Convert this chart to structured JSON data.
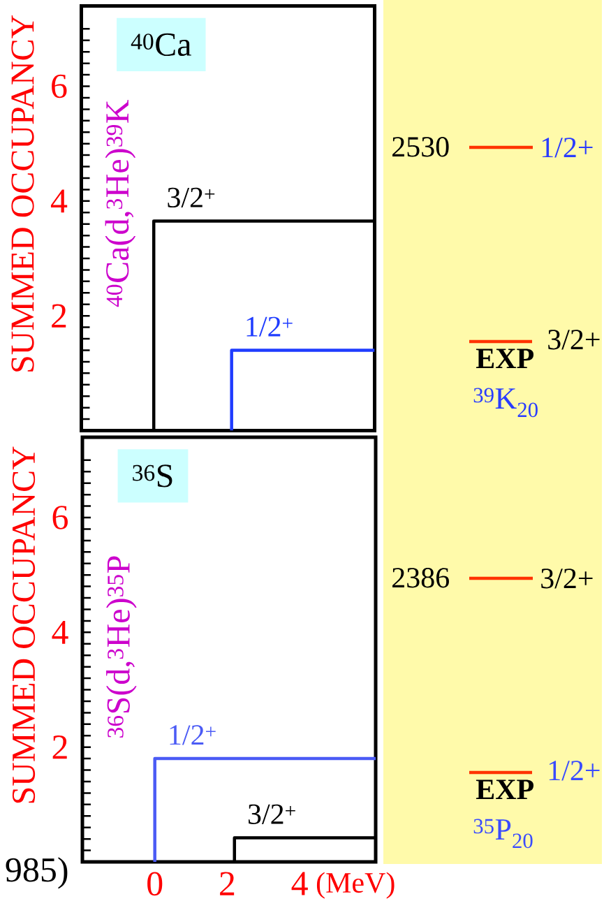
{
  "chart_data": [
    {
      "type": "step",
      "title": "$^{40}$Ca",
      "subtitle": "$^{40}$Ca(d,$^{3}$He)$^{39}$K",
      "ylabel": "SUMMED OCCUPANCY",
      "xlim": [
        -2,
        6.1
      ],
      "ylim": [
        0,
        7.4
      ],
      "xticks": [
        0,
        2,
        4
      ],
      "tick_labels": "y",
      "yticks": [
        {
          "value": 0.2,
          "label": null
        },
        {
          "value": 0.4,
          "label": null
        },
        {
          "value": 0.6,
          "label": null
        },
        {
          "value": 0.8,
          "label": null
        },
        {
          "value": 1,
          "label": null
        },
        {
          "value": 1.2,
          "label": null
        },
        {
          "value": 1.4,
          "label": null
        },
        {
          "value": 1.6,
          "label": null
        },
        {
          "value": 1.8,
          "label": null
        },
        2,
        {
          "value": 2.2,
          "label": null
        },
        {
          "value": 2.4,
          "label": null
        },
        {
          "value": 2.6,
          "label": null
        },
        {
          "value": 2.8,
          "label": null
        },
        {
          "value": 3,
          "label": null
        },
        {
          "value": 3.2,
          "label": null
        },
        {
          "value": 3.4,
          "label": null
        },
        {
          "value": 3.6,
          "label": null
        },
        {
          "value": 3.8,
          "label": null
        },
        4,
        {
          "value": 4.2,
          "label": null
        },
        {
          "value": 4.4,
          "label": null
        },
        {
          "value": 4.6,
          "label": null
        },
        {
          "value": 4.8,
          "label": null
        },
        {
          "value": 5,
          "label": null
        },
        {
          "value": 5.2,
          "label": null
        },
        {
          "value": 5.4,
          "label": null
        },
        {
          "value": 5.6,
          "label": null
        },
        {
          "value": 5.8,
          "label": null
        },
        6,
        {
          "value": 6.2,
          "label": null
        },
        {
          "value": 6.4,
          "label": null
        },
        {
          "value": 6.6,
          "label": null
        },
        {
          "value": 6.8,
          "label": null
        },
        {
          "value": 7,
          "label": null
        }
      ],
      "series": [
        {
          "name": "3/2$^{+}$",
          "color": "#000000",
          "x": [
            0,
            0,
            6.1
          ],
          "values": [
            0,
            3.65,
            3.65
          ]
        },
        {
          "name": "1/2$^{+}$",
          "color": "#1f3cff",
          "x": [
            2.15,
            2.15,
            6.1
          ],
          "values": [
            0,
            1.4,
            1.4
          ]
        }
      ]
    },
    {
      "type": "other",
      "annotations": [
        "2530",
        "1/2+",
        "3/2+",
        "EXP",
        "$^{39}$K$_{20}$"
      ]
    },
    {
      "type": "step",
      "title": "$^{36}$S",
      "subtitle": "$^{36}$S(d,$^{3}$He)$^{35}$P",
      "xlabel": "(MeV)",
      "ylabel": "SUMMED OCCUPANCY",
      "xlim": [
        -2,
        6.1
      ],
      "ylim": [
        0,
        7.4
      ],
      "xticks": [
        0,
        2,
        4
      ],
      "yticks": [
        {
          "value": 0.2,
          "label": null
        },
        {
          "value": 0.4,
          "label": null
        },
        {
          "value": 0.6,
          "label": null
        },
        {
          "value": 0.8,
          "label": null
        },
        {
          "value": 1,
          "label": null
        },
        {
          "value": 1.2,
          "label": null
        },
        {
          "value": 1.4,
          "label": null
        },
        {
          "value": 1.6,
          "label": null
        },
        {
          "value": 1.8,
          "label": null
        },
        2,
        {
          "value": 2.2,
          "label": null
        },
        {
          "value": 2.4,
          "label": null
        },
        {
          "value": 2.6,
          "label": null
        },
        {
          "value": 2.8,
          "label": null
        },
        {
          "value": 3,
          "label": null
        },
        {
          "value": 3.2,
          "label": null
        },
        {
          "value": 3.4,
          "label": null
        },
        {
          "value": 3.6,
          "label": null
        },
        {
          "value": 3.8,
          "label": null
        },
        4,
        {
          "value": 4.2,
          "label": null
        },
        {
          "value": 4.4,
          "label": null
        },
        {
          "value": 4.6,
          "label": null
        },
        {
          "value": 4.8,
          "label": null
        },
        {
          "value": 5,
          "label": null
        },
        {
          "value": 5.2,
          "label": null
        },
        {
          "value": 5.4,
          "label": null
        },
        {
          "value": 5.6,
          "label": null
        },
        {
          "value": 5.8,
          "label": null
        },
        6,
        {
          "value": 6.2,
          "label": null
        },
        {
          "value": 6.4,
          "label": null
        },
        {
          "value": 6.6,
          "label": null
        },
        {
          "value": 6.8,
          "label": null
        },
        {
          "value": 7,
          "label": null
        }
      ],
      "annotations": [
        "985)"
      ],
      "series": [
        {
          "name": "1/2$^{+}$",
          "color": "#4b5bf5",
          "x": [
            0,
            0,
            6.1
          ],
          "values": [
            0,
            1.8,
            1.8
          ]
        },
        {
          "name": "3/2$^{+}$",
          "color": "#000000",
          "x": [
            2.2,
            2.2,
            6.1
          ],
          "values": [
            0,
            0.42,
            0.42
          ]
        }
      ]
    },
    {
      "type": "other",
      "annotations": [
        "2386",
        "3/2+",
        "1/2+",
        "EXP",
        "$^{35}$P$_{20}$"
      ]
    }
  ]
}
